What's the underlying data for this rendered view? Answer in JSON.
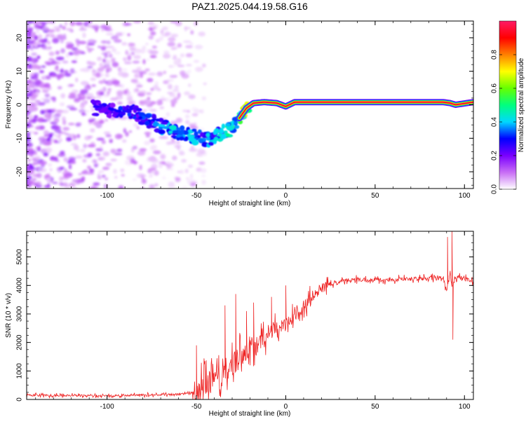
{
  "title": "PAZ1.2025.044.19.58.G16",
  "chart_data": [
    {
      "type": "heatmap",
      "xlabel": "Height of straight line (km)",
      "ylabel": "Frequency (Hz)",
      "xlim": [
        -145,
        105
      ],
      "ylim": [
        -25,
        25
      ],
      "xticks": [
        -100,
        -50,
        0,
        50,
        100
      ],
      "yticks": [
        -20,
        -10,
        0,
        10,
        20
      ],
      "colorbar": {
        "label": "Normalized spectral amplitude",
        "range": [
          0,
          1
        ],
        "ticks": [
          "0.0",
          "0.2",
          "0.4",
          "0.6",
          "0.8"
        ],
        "tick_values": [
          0,
          0.2,
          0.4,
          0.6,
          0.8
        ],
        "colors": [
          "#ffffff",
          "#c86ef5",
          "#7a00ff",
          "#0000ff",
          "#00d8ff",
          "#00ff7f",
          "#66ff00",
          "#ffff00",
          "#ff8000",
          "#ff0000",
          "#ff1a66"
        ]
      },
      "ridge": {
        "x": [
          -105,
          -95,
          -85,
          -75,
          -65,
          -55,
          -48,
          -42,
          -38,
          -34,
          -30,
          -26,
          -22,
          -18,
          -12,
          -5,
          0,
          5,
          10,
          20,
          30,
          50,
          70,
          88,
          92,
          95,
          105
        ],
        "freq": [
          -1,
          -1.5,
          -2.5,
          -5,
          -7.5,
          -9,
          -10,
          -10.5,
          -9,
          -8,
          -7,
          -4,
          -1,
          0.5,
          0.8,
          0.5,
          -0.5,
          0.8,
          0.8,
          0.8,
          0.8,
          0.8,
          0.8,
          0.8,
          0.5,
          0,
          0.8
        ],
        "amplitude": [
          0.25,
          0.3,
          0.3,
          0.35,
          0.4,
          0.45,
          0.35,
          0.4,
          0.4,
          0.45,
          0.5,
          0.55,
          0.7,
          0.8,
          0.85,
          0.85,
          0.8,
          0.9,
          0.9,
          0.95,
          0.95,
          0.95,
          0.95,
          0.9,
          0.6,
          0.5,
          0.9
        ]
      }
    },
    {
      "type": "line",
      "xlabel": "Height of straight line (km)",
      "ylabel": "SNR (10 * v/v)",
      "xlim": [
        -145,
        105
      ],
      "ylim": [
        0,
        5900
      ],
      "xticks": [
        -100,
        -50,
        0,
        50,
        100
      ],
      "yticks": [
        0,
        1000,
        2000,
        3000,
        4000,
        5000
      ],
      "color": "#ee2222",
      "trend": {
        "x": [
          -145,
          -100,
          -60,
          -52,
          -48,
          -45,
          -40,
          -35,
          -30,
          -25,
          -20,
          -15,
          -10,
          -5,
          0,
          5,
          10,
          15,
          20,
          25,
          30,
          40,
          60,
          80,
          88,
          90,
          92,
          93,
          95,
          100,
          105
        ],
        "y": [
          150,
          130,
          180,
          250,
          500,
          650,
          800,
          1000,
          1200,
          1500,
          1900,
          2100,
          2300,
          2450,
          2600,
          2900,
          3300,
          3600,
          3900,
          4050,
          4150,
          4200,
          4200,
          4250,
          4250,
          3800,
          4500,
          3900,
          4300,
          4250,
          4150
        ]
      },
      "spikes": [
        {
          "x": -50,
          "y": 1900
        },
        {
          "x": -34,
          "y": 3300
        },
        {
          "x": -28,
          "y": 3700
        },
        {
          "x": -22,
          "y": 3100
        },
        {
          "x": -18,
          "y": 3400
        },
        {
          "x": -8,
          "y": 3600
        },
        {
          "x": 0,
          "y": 4000
        },
        {
          "x": 90.5,
          "y": 5700
        },
        {
          "x": 93,
          "y": 5900
        },
        {
          "x": 93.5,
          "y": 2100
        }
      ]
    }
  ]
}
